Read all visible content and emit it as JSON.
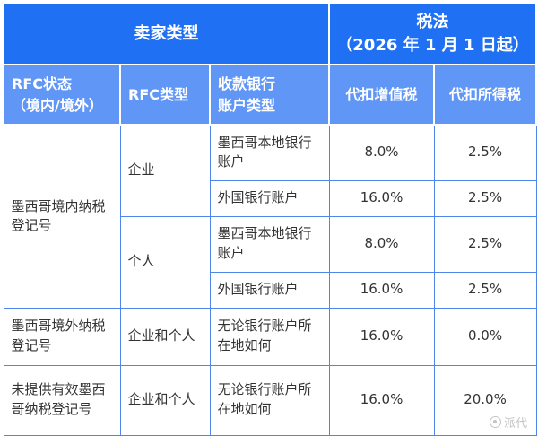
{
  "colors": {
    "header_primary_blue": "#2070f3",
    "header_secondary_blue": "#6096f5",
    "body_border_blue": "#4f86ec",
    "body_text": "#333333",
    "watermark_gray": "#c4c4c4"
  },
  "chart_data": {
    "type": "table",
    "column_groups": [
      {
        "label": "卖家类型",
        "span": 3
      },
      {
        "label": "税法\n（2026 年 1 月 1 日起）",
        "span": 2
      }
    ],
    "columns": [
      "RFC状态\n（境内/境外）",
      "RFC类型",
      "收款银行\n账户类型",
      "代扣增值税",
      "代扣所得税"
    ],
    "rows": [
      [
        "墨西哥境内纳税登记号",
        "企业",
        "墨西哥本地银行账户",
        "8.0%",
        "2.5%"
      ],
      [
        "墨西哥境内纳税登记号",
        "企业",
        "外国银行账户",
        "16.0%",
        "2.5%"
      ],
      [
        "墨西哥境内纳税登记号",
        "个人",
        "墨西哥本地银行账户",
        "8.0%",
        "2.5%"
      ],
      [
        "墨西哥境内纳税登记号",
        "个人",
        "外国银行账户",
        "16.0%",
        "2.5%"
      ],
      [
        "墨西哥境外纳税登记号",
        "企业和个人",
        "无论银行账户所在地如何",
        "16.0%",
        "0.0%"
      ],
      [
        "未提供有效墨西哥纳税登记号",
        "企业和个人",
        "无论银行账户所在地如何",
        "16.0%",
        "20.0%"
      ]
    ]
  },
  "watermark": {
    "text": "派代"
  }
}
